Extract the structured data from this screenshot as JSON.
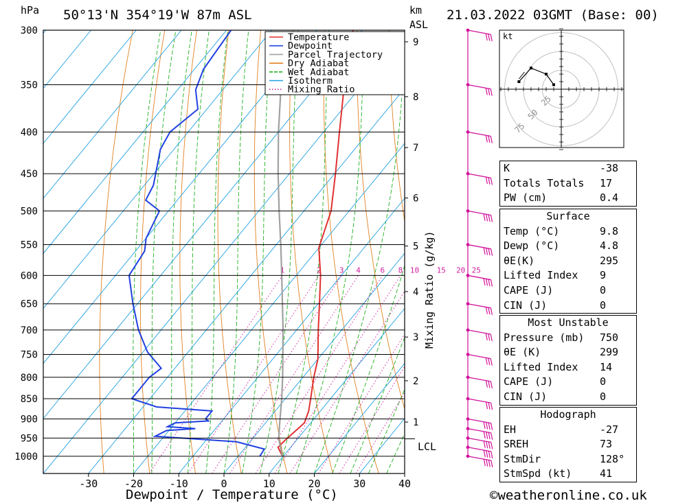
{
  "header": {
    "location": "50°13'N 354°19'W 87m ASL",
    "datetime": "21.03.2022 03GMT (Base: 00)",
    "pressure_unit": "hPa",
    "height_unit_km": "km",
    "height_unit_asl": "ASL"
  },
  "footer": {
    "xlabel": "Dewpoint / Temperature (°C)",
    "credit": "©weatheronline.co.uk"
  },
  "chart_data": {
    "type": "line",
    "skew_t": true,
    "y_axis": "pressure_log",
    "ylim": [
      1050,
      300
    ],
    "xlim": [
      -40,
      40
    ],
    "xticks": [
      -30,
      -20,
      -10,
      0,
      10,
      20,
      30,
      40
    ],
    "pressure_levels": [
      300,
      350,
      400,
      450,
      500,
      550,
      600,
      650,
      700,
      750,
      800,
      850,
      900,
      950,
      1000
    ],
    "height_ticks": [
      {
        "km": "9",
        "p": 310
      },
      {
        "km": "8",
        "p": 362
      },
      {
        "km": "7",
        "p": 418
      },
      {
        "km": "6",
        "p": 482
      },
      {
        "km": "5",
        "p": 552
      },
      {
        "km": "4",
        "p": 628
      },
      {
        "km": "3",
        "p": 714
      },
      {
        "km": "2",
        "p": 808
      },
      {
        "km": "1",
        "p": 908
      }
    ],
    "lcl": {
      "label": "LCL",
      "p": 952
    },
    "mixing_ratio_label": "Mixing Ratio (g/kg)",
    "mixing_ratio_values": [
      "1",
      "2",
      "3",
      "4",
      "6",
      "8",
      "10",
      "15",
      "20",
      "25"
    ],
    "legend": [
      "Temperature",
      "Dewpoint",
      "Parcel Trajectory",
      "Dry Adiabat",
      "Wet Adiabat",
      "Isotherm",
      "Mixing Ratio"
    ],
    "colors": {
      "Temperature": "#e03030",
      "Dewpoint": "#2040e0",
      "Parcel Trajectory": "#a0a0a0",
      "Dry Adiabat": "#e08020",
      "Wet Adiabat": "#20b020",
      "Isotherm": "#20a0e0",
      "Mixing Ratio": "#d020a0",
      "wind": "#d0109a"
    },
    "series": [
      {
        "name": "Temperature",
        "points": [
          [
            1000,
            9.8
          ],
          [
            975,
            7.2
          ],
          [
            955,
            7.5
          ],
          [
            935,
            8.0
          ],
          [
            910,
            8.6
          ],
          [
            880,
            7.4
          ],
          [
            850,
            5.6
          ],
          [
            800,
            2.4
          ],
          [
            760,
            0.0
          ],
          [
            700,
            -5.2
          ],
          [
            650,
            -9.7
          ],
          [
            600,
            -14.6
          ],
          [
            555,
            -20.0
          ],
          [
            500,
            -24.0
          ],
          [
            450,
            -29.8
          ],
          [
            400,
            -36.5
          ],
          [
            350,
            -44.0
          ],
          [
            300,
            -52.0
          ]
        ]
      },
      {
        "name": "Dewpoint",
        "points": [
          [
            1000,
            4.8
          ],
          [
            980,
            4.5
          ],
          [
            960,
            -3.0
          ],
          [
            945,
            -22.0
          ],
          [
            930,
            -20.5
          ],
          [
            925,
            -14.5
          ],
          [
            920,
            -21.0
          ],
          [
            910,
            -20.0
          ],
          [
            905,
            -13.0
          ],
          [
            900,
            -14.0
          ],
          [
            880,
            -14.0
          ],
          [
            870,
            -27.0
          ],
          [
            850,
            -34.0
          ],
          [
            800,
            -34.0
          ],
          [
            780,
            -33.0
          ],
          [
            745,
            -39.0
          ],
          [
            700,
            -45.0
          ],
          [
            650,
            -51.0
          ],
          [
            600,
            -57.0
          ],
          [
            560,
            -58.0
          ],
          [
            540,
            -60.0
          ],
          [
            500,
            -62.0
          ],
          [
            485,
            -67.0
          ],
          [
            465,
            -68.0
          ],
          [
            420,
            -73.0
          ],
          [
            400,
            -74.0
          ],
          [
            375,
            -72.0
          ],
          [
            355,
            -76.0
          ],
          [
            335,
            -78.0
          ],
          [
            300,
            -79.0
          ]
        ]
      },
      {
        "name": "Parcel Trajectory",
        "points": [
          [
            1000,
            9.8
          ],
          [
            952,
            5.8
          ],
          [
            900,
            2.5
          ],
          [
            850,
            -0.8
          ],
          [
            800,
            -4.5
          ],
          [
            750,
            -8.6
          ],
          [
            700,
            -13.0
          ],
          [
            650,
            -17.9
          ],
          [
            600,
            -23.2
          ],
          [
            550,
            -29.0
          ],
          [
            500,
            -35.5
          ],
          [
            450,
            -42.5
          ],
          [
            400,
            -50.0
          ],
          [
            350,
            -58.0
          ],
          [
            310,
            -64.0
          ]
        ]
      }
    ],
    "wind_profile": [
      {
        "p": 1000,
        "dir": 128,
        "kt": 35
      },
      {
        "p": 975,
        "dir": 130,
        "kt": 38
      },
      {
        "p": 950,
        "dir": 135,
        "kt": 40
      },
      {
        "p": 925,
        "dir": 140,
        "kt": 38
      },
      {
        "p": 900,
        "dir": 145,
        "kt": 35
      },
      {
        "p": 850,
        "dir": 150,
        "kt": 30
      },
      {
        "p": 800,
        "dir": 160,
        "kt": 25
      },
      {
        "p": 750,
        "dir": 170,
        "kt": 25
      },
      {
        "p": 700,
        "dir": 170,
        "kt": 30
      },
      {
        "p": 650,
        "dir": 160,
        "kt": 30
      },
      {
        "p": 600,
        "dir": 155,
        "kt": 35
      },
      {
        "p": 550,
        "dir": 150,
        "kt": 35
      },
      {
        "p": 500,
        "dir": 150,
        "kt": 40
      },
      {
        "p": 450,
        "dir": 160,
        "kt": 30
      },
      {
        "p": 400,
        "dir": 165,
        "kt": 30
      },
      {
        "p": 350,
        "dir": 170,
        "kt": 30
      },
      {
        "p": 300,
        "dir": 170,
        "kt": 30
      }
    ],
    "hodograph": {
      "unit": "kt",
      "ring_labels": [
        "25",
        "50",
        "75"
      ],
      "points_uv": [
        [
          -28,
          5
        ],
        [
          -20,
          14
        ],
        [
          -10,
          10
        ],
        [
          -5,
          3
        ]
      ]
    }
  },
  "indices": {
    "general": [
      {
        "label": "K",
        "value": "-38"
      },
      {
        "label": "Totals Totals",
        "value": "17"
      },
      {
        "label": "PW (cm)",
        "value": "0.4"
      }
    ],
    "surface": {
      "title": "Surface",
      "rows": [
        {
          "label": "Temp (°C)",
          "value": "9.8"
        },
        {
          "label": "Dewp (°C)",
          "value": "4.8"
        },
        {
          "label": "θE(K)",
          "value": "295"
        },
        {
          "label": "Lifted Index",
          "value": "9"
        },
        {
          "label": "CAPE (J)",
          "value": "0"
        },
        {
          "label": "CIN (J)",
          "value": "0"
        }
      ]
    },
    "most_unstable": {
      "title": "Most Unstable",
      "rows": [
        {
          "label": "Pressure (mb)",
          "value": "750"
        },
        {
          "label": "θE (K)",
          "value": "299"
        },
        {
          "label": "Lifted Index",
          "value": "14"
        },
        {
          "label": "CAPE (J)",
          "value": "0"
        },
        {
          "label": "CIN (J)",
          "value": "0"
        }
      ]
    },
    "hodograph": {
      "title": "Hodograph",
      "rows": [
        {
          "label": "EH",
          "value": "-27"
        },
        {
          "label": "SREH",
          "value": "73"
        },
        {
          "label": "StmDir",
          "value": "128°"
        },
        {
          "label": "StmSpd (kt)",
          "value": "41"
        }
      ]
    }
  }
}
